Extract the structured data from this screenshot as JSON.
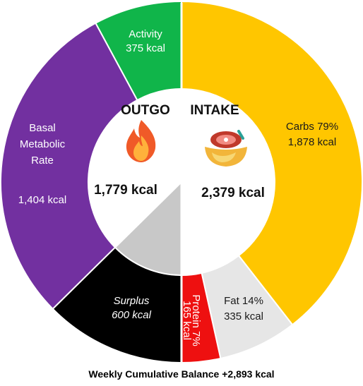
{
  "chart_data": {
    "type": "pie",
    "style": "split-donut",
    "left_half": {
      "title": "OUTGO",
      "icon": "flame-icon",
      "total": "1,779 kcal",
      "segments": [
        {
          "key": "activity",
          "name": "Activity",
          "value": 375,
          "label": "375 kcal",
          "color": "#10b54a"
        },
        {
          "key": "bmr",
          "name": "Basal Metabolic Rate",
          "name_lines": [
            "Basal",
            "Metabolic",
            "Rate"
          ],
          "value": 1404,
          "label": "1,404 kcal",
          "color": "#7230a0"
        },
        {
          "key": "surplus",
          "name": "Surplus",
          "value": 600,
          "label": "600 kcal",
          "color": "#000000",
          "inner_color": "#c8c8c8"
        }
      ]
    },
    "right_half": {
      "title": "INTAKE",
      "icon": "food-bowl-icon",
      "total": "2,379 kcal",
      "segments": [
        {
          "key": "carbs",
          "name": "Carbs",
          "percent": "79%",
          "value": 1878,
          "label": "1,878 kcal",
          "color": "#ffc600"
        },
        {
          "key": "fat",
          "name": "Fat",
          "percent": "14%",
          "value": 335,
          "label": "335 kcal",
          "color": "#e6e6e6"
        },
        {
          "key": "protein",
          "name": "Protein",
          "percent": "7%",
          "value": 165,
          "label": "165 kcal",
          "color": "#ee1010"
        }
      ]
    },
    "footer": "Weekly Cumulative Balance +2,893 kcal"
  }
}
